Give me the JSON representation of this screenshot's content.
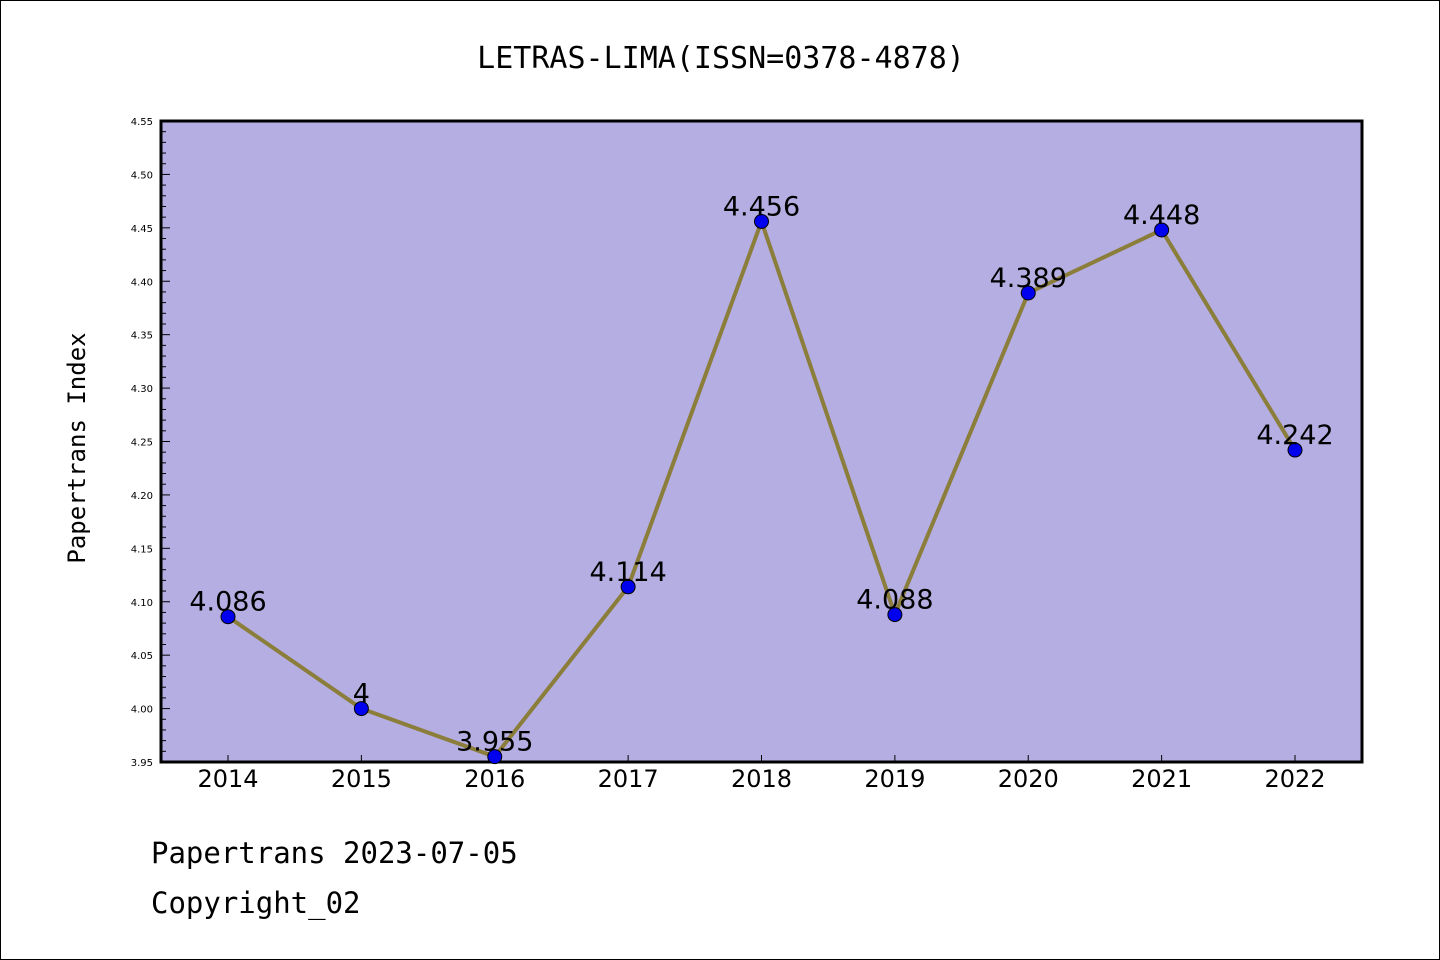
{
  "chart_data": {
    "type": "line",
    "title": "LETRAS-LIMA(ISSN=0378-4878)",
    "xlabel": "",
    "ylabel": "Papertrans Index",
    "categories": [
      "2014",
      "2015",
      "2016",
      "2017",
      "2018",
      "2019",
      "2020",
      "2021",
      "2022"
    ],
    "series": [
      {
        "values": [
          4.086,
          4,
          3.955,
          4.114,
          4.456,
          4.088,
          4.389,
          4.448,
          4.242
        ],
        "data_labels": [
          "4.086",
          "4",
          "3.955",
          "4.114",
          "4.456",
          "4.088",
          "4.389",
          "4.448",
          "4.242"
        ]
      }
    ],
    "ylim": [
      3.95,
      4.55
    ],
    "yticks": [
      "3.95",
      "4.00",
      "4.05",
      "4.10",
      "4.15",
      "4.20",
      "4.25",
      "4.30",
      "4.35",
      "4.40",
      "4.45",
      "4.50",
      "4.55"
    ],
    "grid": false,
    "legend": "none",
    "colors": {
      "plot_background": "#b5aee2",
      "line": "#8b7d3a",
      "marker": "#0000ee"
    }
  },
  "footer": {
    "date_line": "Papertrans 2023-07-05",
    "copyright_line": "Copyright_02"
  }
}
